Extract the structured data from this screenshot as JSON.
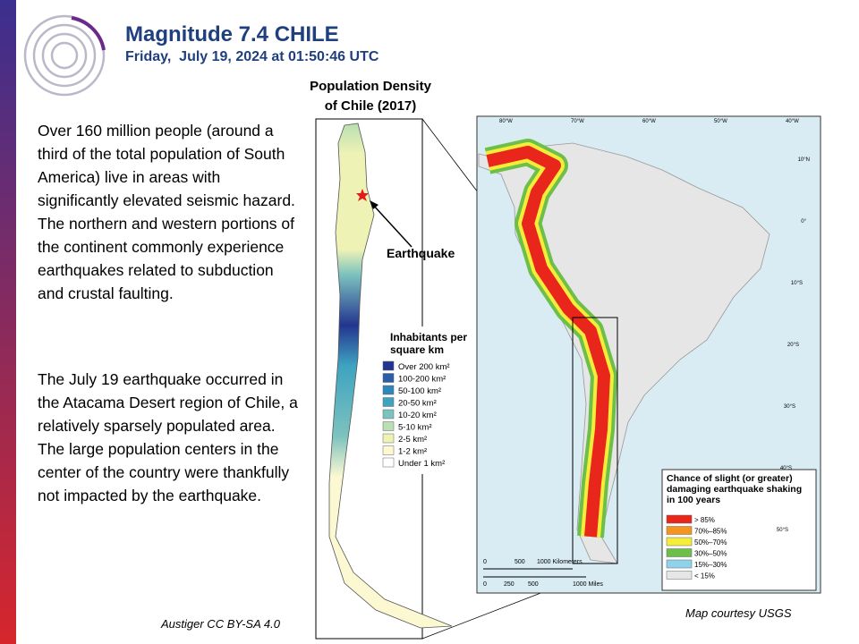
{
  "header": {
    "title": "Magnitude 7.4 CHILE",
    "subtitle": "Friday,  July 19, 2024 at 01:50:46 UTC"
  },
  "body": [
    "Over 160 million people (around a third of the total population of South America) live in areas with significantly elevated seismic hazard. The northern and western portions of the continent commonly experience earthquakes related to subduction and crustal faulting.",
    "The July 19 earthquake occurred in the Atacama Desert region of Chile, a relatively sparsely populated area. The large population centers in the center of the country were thankfully not impacted by the earthquake."
  ],
  "density_map": {
    "title": "Population Density of Chile (2017)",
    "marker_label": "Earthquake",
    "legend_title": "Inhabitants per square km",
    "legend": [
      {
        "label": "Over 200 km²",
        "color": "#23358f"
      },
      {
        "label": "100-200 km²",
        "color": "#2c5da8"
      },
      {
        "label": "50-100 km²",
        "color": "#2f86b9"
      },
      {
        "label": "20-50 km²",
        "color": "#3fa3c0"
      },
      {
        "label": "10-20 km²",
        "color": "#7cc2bf"
      },
      {
        "label": "5-10 km²",
        "color": "#b9dfb2"
      },
      {
        "label": "2-5 km²",
        "color": "#eef2b5"
      },
      {
        "label": "1-2 km²",
        "color": "#fbf8d2"
      },
      {
        "label": "Under 1 km²",
        "color": "#ffffff"
      }
    ],
    "credit": "Austiger CC BY-SA 4.0"
  },
  "hazard_map": {
    "longitudes": [
      "80°W",
      "70°W",
      "60°W",
      "50°W",
      "40°W"
    ],
    "latitudes": [
      "10°N",
      "0°",
      "10°S",
      "20°S",
      "30°S",
      "40°S",
      "50°S"
    ],
    "scale_km": [
      "0",
      "500",
      "1000 Kilometers"
    ],
    "scale_mi": [
      "0",
      "250",
      "500",
      "1000 Miles"
    ],
    "legend_title": "Chance of slight (or greater) damaging earthquake shaking in 100 years",
    "legend": [
      {
        "label": "> 85%",
        "color": "#e8261c"
      },
      {
        "label": "70%–85%",
        "color": "#f7941d"
      },
      {
        "label": "50%–70%",
        "color": "#f6ec3a"
      },
      {
        "label": "30%–50%",
        "color": "#6cc04a"
      },
      {
        "label": "15%–30%",
        "color": "#8fd3ea"
      },
      {
        "label": "< 15%",
        "color": "#e6e6e6"
      }
    ],
    "credit": "Map courtesy USGS"
  }
}
